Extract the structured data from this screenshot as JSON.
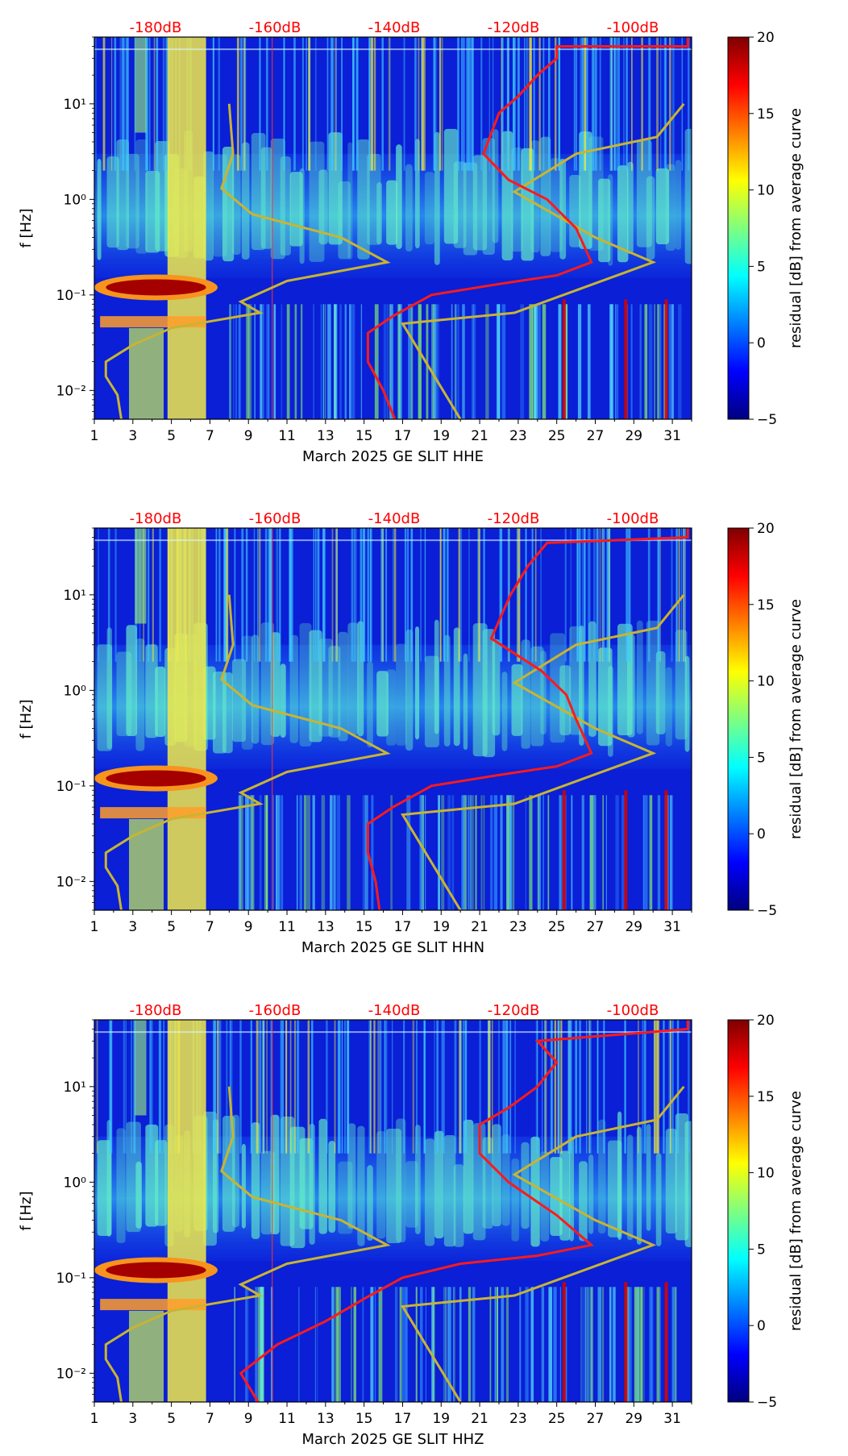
{
  "colors": {
    "accent": "#ff0000",
    "model_curve": "#c8b432",
    "measured_curve": "#ff1a1a"
  },
  "colormap": [
    "#00007f",
    "#0000ff",
    "#007fff",
    "#00ffff",
    "#7fff7f",
    "#ffff00",
    "#ff7f00",
    "#ff0000",
    "#7f0000"
  ],
  "chart_data": [
    {
      "type": "heatmap",
      "channel": "HHE",
      "xlabel": "March 2025 GE SLIT  HHE",
      "ylabel": "f [Hz]",
      "xlim": [
        1,
        32
      ],
      "ylim": [
        0.005,
        50
      ],
      "yscale": "log",
      "xticks": [
        1,
        3,
        5,
        7,
        9,
        11,
        13,
        15,
        17,
        19,
        21,
        23,
        25,
        27,
        29,
        31
      ],
      "xtick_labels": [
        "1",
        "3",
        "5",
        "7",
        "9",
        "11",
        "13",
        "15",
        "17",
        "19",
        "21",
        "23",
        "25",
        "27",
        "29",
        "31"
      ],
      "yticks": [
        0.01,
        0.1,
        1,
        10
      ],
      "ytick_labels": [
        "10⁻²",
        "10⁻¹",
        "10⁰",
        "10¹"
      ],
      "db_scale_labels": [
        "-180dB",
        "-160dB",
        "-140dB",
        "-120dB",
        "-100dB"
      ],
      "colorbar": {
        "label": "residual [dB] from average curve",
        "range": [
          -5,
          20
        ],
        "ticks": [
          "−5",
          "0",
          "5",
          "10",
          "15",
          "20"
        ]
      },
      "model_curve": [
        [
          2.4,
          0.005
        ],
        [
          2.2,
          0.009
        ],
        [
          1.6,
          0.014
        ],
        [
          1.6,
          0.02
        ],
        [
          3,
          0.03
        ],
        [
          5,
          0.045
        ],
        [
          9.6,
          0.065
        ],
        [
          8.6,
          0.085
        ],
        [
          11,
          0.14
        ],
        [
          16.2,
          0.22
        ],
        [
          13.8,
          0.4
        ],
        [
          9.2,
          0.7
        ],
        [
          7.6,
          1.3
        ],
        [
          8.2,
          3
        ],
        [
          8,
          10
        ]
      ],
      "model_curve_right": [
        [
          20,
          0.005
        ],
        [
          17,
          0.05
        ],
        [
          22.8,
          0.065
        ],
        [
          30,
          0.22
        ],
        [
          27,
          0.4
        ],
        [
          22.8,
          1.2
        ],
        [
          26,
          3
        ],
        [
          30.2,
          4.5
        ],
        [
          31.6,
          10
        ]
      ],
      "measured_curve": [
        [
          16.6,
          0.005
        ],
        [
          16,
          0.01
        ],
        [
          15.2,
          0.02
        ],
        [
          15.2,
          0.04
        ],
        [
          16.5,
          0.06
        ],
        [
          18.5,
          0.1
        ],
        [
          22,
          0.13
        ],
        [
          25,
          0.16
        ],
        [
          26.8,
          0.22
        ],
        [
          26,
          0.5
        ],
        [
          24.5,
          1
        ],
        [
          22.5,
          1.6
        ],
        [
          21.2,
          3
        ],
        [
          22,
          8
        ],
        [
          23,
          12
        ],
        [
          24,
          20
        ],
        [
          25,
          30
        ],
        [
          25,
          40
        ],
        [
          31.8,
          40
        ],
        [
          31.8,
          50
        ]
      ]
    },
    {
      "type": "heatmap",
      "channel": "HHN",
      "xlabel": "March 2025 GE SLIT  HHN",
      "ylabel": "f [Hz]",
      "xlim": [
        1,
        32
      ],
      "ylim": [
        0.005,
        50
      ],
      "yscale": "log",
      "xticks": [
        1,
        3,
        5,
        7,
        9,
        11,
        13,
        15,
        17,
        19,
        21,
        23,
        25,
        27,
        29,
        31
      ],
      "xtick_labels": [
        "1",
        "3",
        "5",
        "7",
        "9",
        "11",
        "13",
        "15",
        "17",
        "19",
        "21",
        "23",
        "25",
        "27",
        "29",
        "31"
      ],
      "yticks": [
        0.01,
        0.1,
        1,
        10
      ],
      "ytick_labels": [
        "10⁻²",
        "10⁻¹",
        "10⁰",
        "10¹"
      ],
      "db_scale_labels": [
        "-180dB",
        "-160dB",
        "-140dB",
        "-120dB",
        "-100dB"
      ],
      "colorbar": {
        "label": "residual [dB] from average curve",
        "range": [
          -5,
          20
        ],
        "ticks": [
          "−5",
          "0",
          "5",
          "10",
          "15",
          "20"
        ]
      },
      "model_curve": [
        [
          2.4,
          0.005
        ],
        [
          2.2,
          0.009
        ],
        [
          1.6,
          0.014
        ],
        [
          1.6,
          0.02
        ],
        [
          3,
          0.03
        ],
        [
          5,
          0.045
        ],
        [
          9.6,
          0.065
        ],
        [
          8.6,
          0.085
        ],
        [
          11,
          0.14
        ],
        [
          16.2,
          0.22
        ],
        [
          13.8,
          0.4
        ],
        [
          9.2,
          0.7
        ],
        [
          7.6,
          1.3
        ],
        [
          8.2,
          3
        ],
        [
          8,
          10
        ]
      ],
      "model_curve_right": [
        [
          20,
          0.005
        ],
        [
          17,
          0.05
        ],
        [
          22.8,
          0.065
        ],
        [
          30,
          0.22
        ],
        [
          27,
          0.4
        ],
        [
          22.8,
          1.2
        ],
        [
          26,
          3
        ],
        [
          30.2,
          4.5
        ],
        [
          31.6,
          10
        ]
      ],
      "measured_curve": [
        [
          15.8,
          0.005
        ],
        [
          15.6,
          0.01
        ],
        [
          15.2,
          0.02
        ],
        [
          15.2,
          0.04
        ],
        [
          16.5,
          0.06
        ],
        [
          18.5,
          0.1
        ],
        [
          22,
          0.13
        ],
        [
          25,
          0.16
        ],
        [
          26.8,
          0.22
        ],
        [
          26,
          0.5
        ],
        [
          25.5,
          0.9
        ],
        [
          24.2,
          1.6
        ],
        [
          21.6,
          3.5
        ],
        [
          22.6,
          10
        ],
        [
          23.5,
          20
        ],
        [
          24.5,
          35
        ],
        [
          31.8,
          40
        ],
        [
          31.8,
          50
        ]
      ]
    },
    {
      "type": "heatmap",
      "channel": "HHZ",
      "xlabel": "March 2025 GE SLIT  HHZ",
      "ylabel": "f [Hz]",
      "xlim": [
        1,
        32
      ],
      "ylim": [
        0.005,
        50
      ],
      "yscale": "log",
      "xticks": [
        1,
        3,
        5,
        7,
        9,
        11,
        13,
        15,
        17,
        19,
        21,
        23,
        25,
        27,
        29,
        31
      ],
      "xtick_labels": [
        "1",
        "3",
        "5",
        "7",
        "9",
        "11",
        "13",
        "15",
        "17",
        "19",
        "21",
        "23",
        "25",
        "27",
        "29",
        "31"
      ],
      "yticks": [
        0.01,
        0.1,
        1,
        10
      ],
      "ytick_labels": [
        "10⁻²",
        "10⁻¹",
        "10⁰",
        "10¹"
      ],
      "db_scale_labels": [
        "-180dB",
        "-160dB",
        "-140dB",
        "-120dB",
        "-100dB"
      ],
      "colorbar": {
        "label": "residual [dB] from average curve",
        "range": [
          -5,
          20
        ],
        "ticks": [
          "−5",
          "0",
          "5",
          "10",
          "15",
          "20"
        ]
      },
      "model_curve": [
        [
          2.4,
          0.005
        ],
        [
          2.2,
          0.009
        ],
        [
          1.6,
          0.014
        ],
        [
          1.6,
          0.02
        ],
        [
          3,
          0.03
        ],
        [
          5,
          0.045
        ],
        [
          9.6,
          0.065
        ],
        [
          8.6,
          0.085
        ],
        [
          11,
          0.14
        ],
        [
          16.2,
          0.22
        ],
        [
          13.8,
          0.4
        ],
        [
          9.2,
          0.7
        ],
        [
          7.6,
          1.3
        ],
        [
          8.2,
          3
        ],
        [
          8,
          10
        ]
      ],
      "model_curve_right": [
        [
          20,
          0.005
        ],
        [
          17,
          0.05
        ],
        [
          22.8,
          0.065
        ],
        [
          30,
          0.22
        ],
        [
          27,
          0.4
        ],
        [
          22.8,
          1.2
        ],
        [
          26,
          3
        ],
        [
          30.2,
          4.5
        ],
        [
          31.6,
          10
        ]
      ],
      "measured_curve": [
        [
          9.5,
          0.005
        ],
        [
          8.6,
          0.01
        ],
        [
          10.5,
          0.02
        ],
        [
          13,
          0.035
        ],
        [
          15,
          0.06
        ],
        [
          17,
          0.1
        ],
        [
          20,
          0.14
        ],
        [
          24,
          0.17
        ],
        [
          26.8,
          0.22
        ],
        [
          25,
          0.45
        ],
        [
          22.5,
          1
        ],
        [
          21,
          2
        ],
        [
          21,
          4
        ],
        [
          22.5,
          6
        ],
        [
          24,
          10
        ],
        [
          25,
          18
        ],
        [
          24,
          30
        ],
        [
          31.8,
          40
        ],
        [
          31.8,
          50
        ]
      ]
    }
  ]
}
